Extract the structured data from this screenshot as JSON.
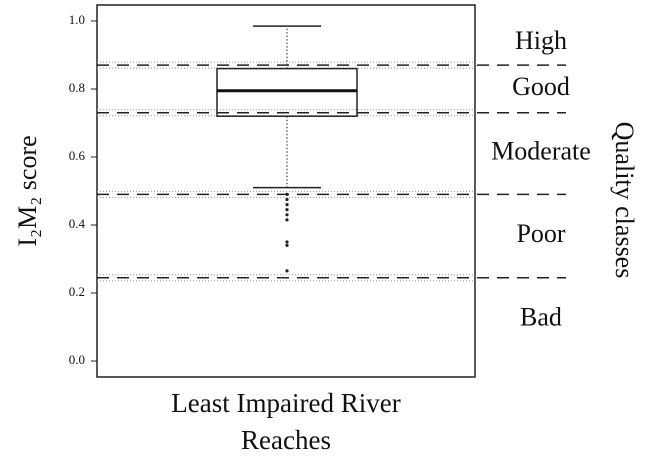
{
  "chart_data": {
    "type": "box",
    "categories": [
      "Least Impaired River Reaches"
    ],
    "y_label": "I₂M₂ score",
    "y2_label": "Quality classes",
    "boxes": [
      {
        "q1": 0.72,
        "median": 0.795,
        "q3": 0.86,
        "whisker_low": 0.51,
        "whisker_high": 0.985,
        "outliers": [
          0.49,
          0.475,
          0.46,
          0.445,
          0.43,
          0.415,
          0.35,
          0.34,
          0.265
        ]
      }
    ],
    "class_thresholds": [
      0.87,
      0.73,
      0.49,
      0.245
    ],
    "classes": [
      "High",
      "Good",
      "Moderate",
      "Poor",
      "Bad"
    ],
    "ylim": [
      -0.047,
      1.047
    ],
    "yticks": [
      {
        "value": 0,
        "label": "0.0"
      },
      0.2,
      0.4,
      0.6,
      0.8,
      {
        "value": 1,
        "label": "1.0"
      }
    ]
  }
}
